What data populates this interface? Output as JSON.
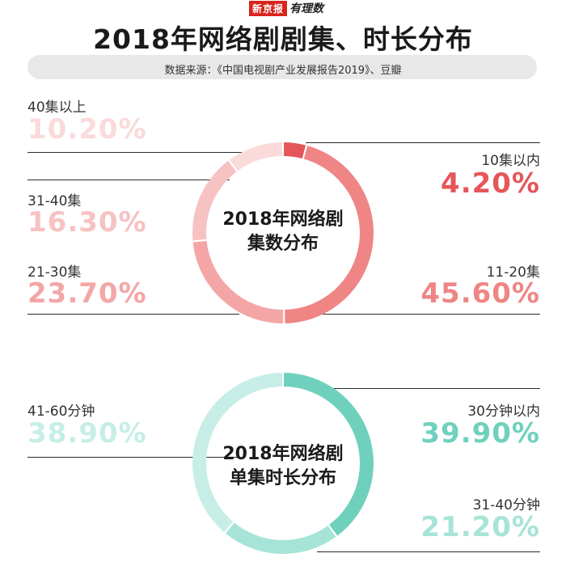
{
  "header": {
    "brand_main": "新京报",
    "brand_sub": "有理数",
    "title": "2018年网络剧剧集、时长分布",
    "source": "数据来源：《中国电视剧产业发展报告2019》、豆瓣"
  },
  "chart_data": [
    {
      "type": "pie",
      "center_title": [
        "2018年网络剧",
        "集数分布"
      ],
      "categories": [
        "10集以内",
        "11-20集",
        "21-30集",
        "31-40集",
        "40集以上"
      ],
      "values": [
        4.2,
        45.6,
        23.7,
        16.3,
        10.2
      ],
      "labels": [
        "4.20%",
        "45.60%",
        "23.70%",
        "16.30%",
        "10.20%"
      ],
      "colors": [
        "#e5565a",
        "#ef8585",
        "#f4a6a6",
        "#f7c2c2",
        "#fadada"
      ]
    },
    {
      "type": "pie",
      "center_title": [
        "2018年网络剧",
        "单集时长分布"
      ],
      "categories": [
        "30分钟以内",
        "31-40分钟",
        "41-60分钟"
      ],
      "values": [
        39.9,
        21.2,
        38.9
      ],
      "labels": [
        "39.90%",
        "21.20%",
        "38.90%"
      ],
      "colors": [
        "#6fd1bd",
        "#a6e4d7",
        "#c7eee6"
      ]
    }
  ]
}
